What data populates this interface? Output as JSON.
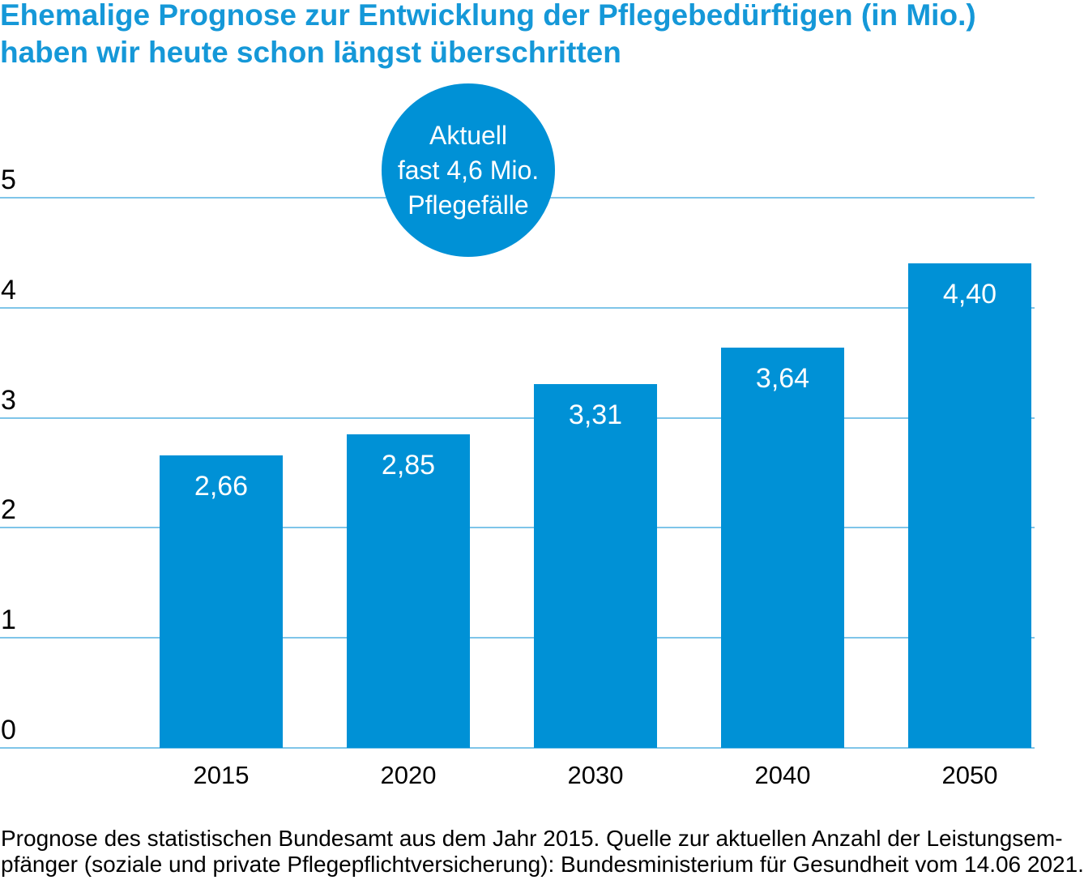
{
  "title": {
    "line1": "Ehemalige Prognose zur Entwicklung der Pflegebedürftigen (in Mio.)",
    "line2": "haben wir heute schon längst überschritten"
  },
  "badge": {
    "text": "Aktuell\nfast 4,6 Mio.\nPflegefälle"
  },
  "footer": {
    "line1": "Prognose des statistischen Bundesamt aus dem Jahr 2015. Quelle zur aktuellen Anzahl der Leistungsem-",
    "line2": "pfänger (soziale und private Pflegepflichtversicherung): Bundesministerium für Gesundheit vom 14.06 2021."
  },
  "colors": {
    "accent_blue": "#0091d6",
    "title_blue": "#1598d8",
    "gridline_blue": "#7fc5e9",
    "text_black": "#000000",
    "bar_label_white": "#ffffff"
  },
  "chart_data": {
    "type": "bar",
    "title": "Ehemalige Prognose zur Entwicklung der Pflegebedürftigen (in Mio.) haben wir heute schon längst überschritten",
    "categories": [
      "2015",
      "2020",
      "2030",
      "2040",
      "2050"
    ],
    "values": [
      2.66,
      2.85,
      3.31,
      3.64,
      4.4
    ],
    "value_labels": [
      "2,66",
      "2,85",
      "3,31",
      "3,64",
      "4,40"
    ],
    "yticks": [
      0,
      1,
      2,
      3,
      4,
      5
    ],
    "ytick_labels": [
      "0",
      "1",
      "2",
      "3",
      "4",
      "5"
    ],
    "ylim": [
      0,
      5
    ],
    "xlabel": "",
    "ylabel": "",
    "grid": true,
    "legend": "none",
    "bar_color": "#0091d6",
    "annotation": "Aktuell fast 4,6 Mio. Pflegefälle"
  }
}
